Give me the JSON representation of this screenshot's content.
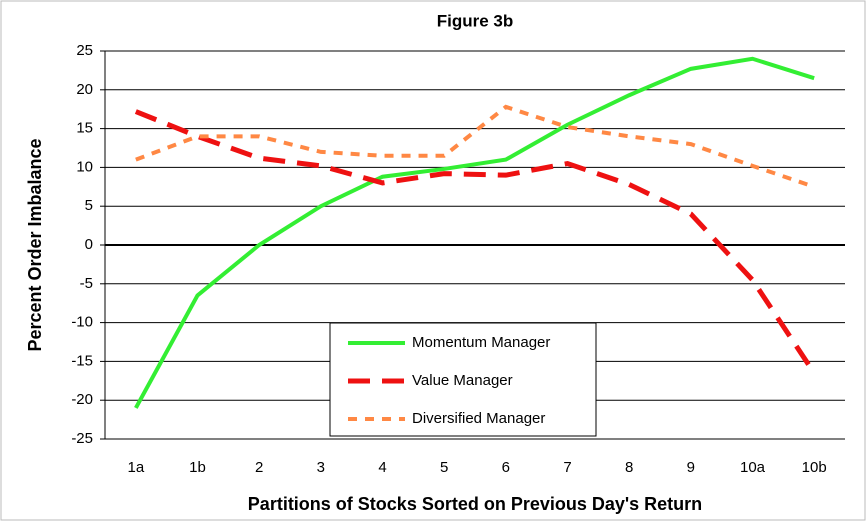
{
  "chart_data": {
    "type": "line",
    "title": "Figure 3b",
    "x_label": "Partitions of Stocks Sorted on Previous Day's Return",
    "y_label": "Percent Order Imbalance",
    "categories": [
      "1a",
      "1b",
      "2",
      "3",
      "4",
      "5",
      "6",
      "7",
      "8",
      "9",
      "10a",
      "10b"
    ],
    "series": [
      {
        "name": "Momentum Manager",
        "color": "#33ee33",
        "dash": "solid",
        "values": [
          -21,
          -6.5,
          0,
          5,
          8.8,
          9.8,
          11,
          15.5,
          19.3,
          22.7,
          24,
          21.5
        ]
      },
      {
        "name": "Value Manager",
        "color": "#ee1111",
        "dash": "long",
        "values": [
          17.2,
          14,
          11.2,
          10.2,
          8,
          9.2,
          9,
          10.5,
          7.8,
          4,
          -4.5,
          -16.5
        ]
      },
      {
        "name": "Diversified Manager",
        "color": "#ff8844",
        "dash": "short",
        "values": [
          11,
          14,
          14,
          12,
          11.5,
          11.5,
          17.8,
          15.2,
          14,
          13,
          10.2,
          7.5
        ]
      }
    ],
    "ylim": [
      -25,
      25
    ],
    "yticks": [
      -25,
      -20,
      -15,
      -10,
      -5,
      0,
      5,
      10,
      15,
      20,
      25
    ],
    "grid": true,
    "legend": "bottom-center"
  }
}
